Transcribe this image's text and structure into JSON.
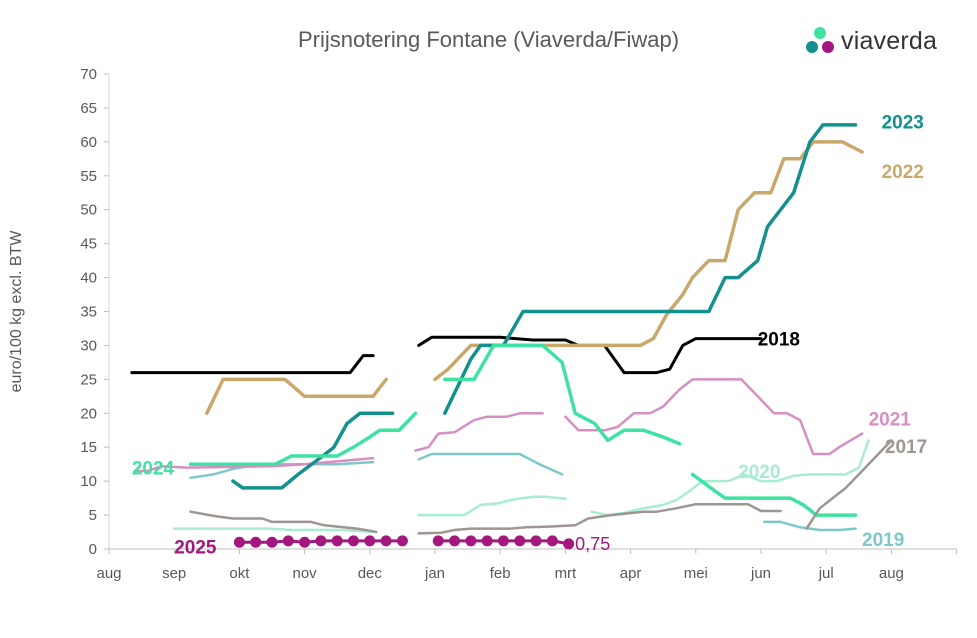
{
  "chart_data": {
    "type": "line",
    "title": "Prijsnotering Fontane (Viaverda/Fiwap)",
    "ylabel": "euro/100 kg excl. BTW",
    "xlabel": "",
    "ylim": [
      0,
      70
    ],
    "y_ticks": [
      0,
      5,
      10,
      15,
      20,
      25,
      30,
      35,
      40,
      45,
      50,
      55,
      60,
      65,
      70
    ],
    "x_ticks": [
      "aug",
      "sep",
      "okt",
      "nov",
      "dec",
      "jan",
      "feb",
      "mrt",
      "apr",
      "mei",
      "jun",
      "jul",
      "aug"
    ],
    "x_unit": "months since start of August (season year)",
    "xlim": [
      0,
      13
    ],
    "grid": false,
    "logo": "viaverda",
    "annotations": [
      {
        "text": "0,75",
        "x": 7.15,
        "y": 0.75
      }
    ],
    "series": [
      {
        "name": "2018",
        "color": "#000000",
        "width": 3,
        "label": {
          "x": 9.95,
          "y": 31
        },
        "segments": [
          [
            [
              0.35,
              26
            ],
            [
              3.7,
              26
            ],
            [
              3.9,
              28.5
            ],
            [
              4.05,
              28.5
            ]
          ],
          [
            [
              4.75,
              30
            ],
            [
              4.95,
              31.2
            ],
            [
              6.0,
              31.2
            ],
            [
              6.5,
              30.8
            ],
            [
              7.0,
              30.8
            ],
            [
              7.2,
              30
            ],
            [
              7.6,
              30
            ],
            [
              7.9,
              26
            ],
            [
              8.4,
              26
            ],
            [
              8.6,
              26.5
            ],
            [
              8.8,
              30
            ],
            [
              9.0,
              31
            ],
            [
              10.0,
              31
            ]
          ]
        ]
      },
      {
        "name": "2019",
        "color": "#7ec8c8",
        "width": 2.5,
        "label": {
          "x": 11.55,
          "y": 1.5
        },
        "segments": [
          [
            [
              1.25,
              10.5
            ],
            [
              1.6,
              11
            ],
            [
              1.9,
              11.8
            ],
            [
              2.3,
              12.5
            ],
            [
              3.5,
              12.5
            ],
            [
              4.05,
              12.8
            ]
          ],
          [
            [
              4.75,
              13.2
            ],
            [
              4.95,
              14
            ],
            [
              6.3,
              14
            ],
            [
              6.6,
              12.5
            ],
            [
              6.95,
              11
            ]
          ],
          [
            [
              10.05,
              4
            ],
            [
              10.3,
              4
            ],
            [
              10.6,
              3.2
            ],
            [
              10.9,
              2.8
            ],
            [
              11.2,
              2.8
            ],
            [
              11.45,
              3
            ]
          ]
        ]
      },
      {
        "name": "2020",
        "color": "#a8ecd2",
        "width": 2.5,
        "label": {
          "x": 9.65,
          "y": 11.5
        },
        "segments": [
          [
            [
              1.0,
              3
            ],
            [
              2.45,
              3
            ],
            [
              2.8,
              2.8
            ],
            [
              3.6,
              2.8
            ],
            [
              4.05,
              2.5
            ]
          ],
          [
            [
              4.75,
              5
            ],
            [
              5.45,
              5
            ],
            [
              5.7,
              6.5
            ],
            [
              5.95,
              6.7
            ],
            [
              6.2,
              7.3
            ],
            [
              6.5,
              7.7
            ],
            [
              6.7,
              7.7
            ],
            [
              7.0,
              7.4
            ]
          ],
          [
            [
              7.4,
              5.5
            ],
            [
              7.65,
              5
            ],
            [
              7.9,
              5.3
            ],
            [
              8.1,
              5.8
            ],
            [
              8.5,
              6.5
            ],
            [
              8.7,
              7.2
            ],
            [
              8.9,
              8.5
            ],
            [
              9.1,
              10
            ],
            [
              9.5,
              10
            ],
            [
              9.75,
              11
            ],
            [
              10.0,
              10
            ],
            [
              10.25,
              10
            ],
            [
              10.5,
              10.8
            ],
            [
              10.75,
              11
            ],
            [
              11.3,
              11
            ],
            [
              11.5,
              12
            ],
            [
              11.65,
              16
            ]
          ]
        ]
      },
      {
        "name": "2021",
        "color": "#d78fc3",
        "width": 2.5,
        "label": {
          "x": 11.65,
          "y": 19.2
        },
        "segments": [
          [
            [
              0.4,
              11.5
            ],
            [
              0.6,
              11.5
            ],
            [
              0.8,
              12.2
            ],
            [
              1.2,
              12
            ],
            [
              2.5,
              12.2
            ],
            [
              3.0,
              12.5
            ],
            [
              3.6,
              13
            ],
            [
              4.05,
              13.4
            ]
          ],
          [
            [
              4.7,
              14.5
            ],
            [
              4.9,
              15
            ],
            [
              5.05,
              17
            ],
            [
              5.3,
              17.2
            ],
            [
              5.6,
              19
            ],
            [
              5.8,
              19.5
            ],
            [
              6.1,
              19.5
            ],
            [
              6.3,
              20
            ],
            [
              6.65,
              20
            ]
          ],
          [
            [
              7.0,
              19.5
            ],
            [
              7.2,
              17.5
            ],
            [
              7.6,
              17.5
            ],
            [
              7.8,
              18
            ],
            [
              8.05,
              20
            ],
            [
              8.3,
              20
            ],
            [
              8.5,
              21
            ],
            [
              8.75,
              23.5
            ],
            [
              8.95,
              25
            ],
            [
              9.7,
              25
            ],
            [
              9.95,
              22.5
            ],
            [
              10.2,
              20
            ],
            [
              10.4,
              20
            ],
            [
              10.6,
              19
            ],
            [
              10.8,
              14
            ],
            [
              11.05,
              14
            ],
            [
              11.2,
              15
            ],
            [
              11.55,
              17
            ]
          ]
        ]
      },
      {
        "name": "2022",
        "color": "#c9a86c",
        "width": 3.5,
        "label": {
          "x": 11.85,
          "y": 55.7
        },
        "segments": [
          [
            [
              1.5,
              20
            ],
            [
              1.75,
              25
            ],
            [
              2.4,
              25
            ],
            [
              2.7,
              25
            ],
            [
              3.0,
              22.5
            ],
            [
              4.05,
              22.5
            ],
            [
              4.25,
              25
            ]
          ],
          [
            [
              5.0,
              25
            ],
            [
              5.2,
              26.5
            ],
            [
              5.45,
              29
            ],
            [
              5.55,
              30
            ],
            [
              7.45,
              30
            ],
            [
              8.15,
              30
            ],
            [
              8.35,
              31
            ],
            [
              8.55,
              34.5
            ],
            [
              8.8,
              37.5
            ],
            [
              8.95,
              40
            ],
            [
              9.2,
              42.5
            ],
            [
              9.45,
              42.5
            ],
            [
              9.65,
              50
            ],
            [
              9.9,
              52.5
            ],
            [
              10.15,
              52.5
            ],
            [
              10.35,
              57.5
            ],
            [
              10.6,
              57.5
            ],
            [
              10.8,
              60
            ],
            [
              11.25,
              60
            ],
            [
              11.55,
              58.5
            ]
          ]
        ]
      },
      {
        "name": "2023",
        "color": "#13918e",
        "width": 3.5,
        "label": {
          "x": 11.85,
          "y": 63
        },
        "segments": [
          [
            [
              1.9,
              10
            ],
            [
              2.05,
              9
            ],
            [
              2.65,
              9
            ],
            [
              2.9,
              11
            ],
            [
              3.25,
              13.5
            ],
            [
              3.45,
              15
            ],
            [
              3.65,
              18.5
            ],
            [
              3.85,
              20
            ],
            [
              4.35,
              20
            ]
          ],
          [
            [
              5.15,
              20
            ],
            [
              5.3,
              23
            ],
            [
              5.55,
              28
            ],
            [
              5.7,
              30
            ],
            [
              6.05,
              30
            ],
            [
              6.35,
              35
            ],
            [
              8.8,
              35
            ],
            [
              9.2,
              35
            ],
            [
              9.45,
              40
            ],
            [
              9.65,
              40
            ],
            [
              9.95,
              42.5
            ],
            [
              10.1,
              47.5
            ],
            [
              10.3,
              50
            ],
            [
              10.5,
              52.5
            ],
            [
              10.75,
              60
            ],
            [
              10.95,
              62.5
            ],
            [
              11.45,
              62.5
            ]
          ]
        ]
      },
      {
        "name": "2024",
        "color": "#3fe2a0",
        "width": 3.5,
        "label": {
          "x": 0.35,
          "y": 12
        },
        "segments": [
          [
            [
              1.25,
              12.5
            ],
            [
              2.55,
              12.5
            ],
            [
              2.8,
              13.7
            ],
            [
              3.5,
              13.7
            ],
            [
              3.75,
              15
            ],
            [
              4.0,
              16.5
            ],
            [
              4.15,
              17.5
            ],
            [
              4.45,
              17.5
            ],
            [
              4.7,
              20
            ]
          ],
          [
            [
              5.15,
              25
            ],
            [
              5.6,
              25
            ],
            [
              5.9,
              30
            ],
            [
              6.65,
              30
            ],
            [
              6.95,
              27.5
            ],
            [
              7.15,
              20
            ],
            [
              7.45,
              18.5
            ],
            [
              7.65,
              16
            ],
            [
              7.9,
              17.5
            ],
            [
              8.2,
              17.5
            ],
            [
              8.5,
              16.5
            ],
            [
              8.75,
              15.5
            ]
          ],
          [
            [
              8.95,
              11
            ],
            [
              9.3,
              8.5
            ],
            [
              9.45,
              7.5
            ],
            [
              10.45,
              7.5
            ],
            [
              10.65,
              6.5
            ],
            [
              10.85,
              5
            ],
            [
              11.45,
              5
            ]
          ]
        ]
      },
      {
        "name": "2017",
        "color": "#9e9691",
        "width": 2.5,
        "label": {
          "x": 11.9,
          "y": 15.2
        },
        "segments": [
          [
            [
              1.25,
              5.5
            ],
            [
              1.65,
              4.8
            ],
            [
              1.9,
              4.5
            ],
            [
              2.35,
              4.5
            ],
            [
              2.5,
              4
            ],
            [
              3.1,
              4
            ],
            [
              3.3,
              3.5
            ],
            [
              3.8,
              3
            ],
            [
              4.0,
              2.7
            ],
            [
              4.1,
              2.5
            ]
          ],
          [
            [
              4.75,
              2.3
            ],
            [
              5.1,
              2.4
            ],
            [
              5.3,
              2.8
            ],
            [
              5.55,
              3
            ],
            [
              6.15,
              3
            ],
            [
              6.4,
              3.2
            ],
            [
              6.75,
              3.3
            ],
            [
              7.15,
              3.5
            ],
            [
              7.35,
              4.5
            ],
            [
              7.7,
              5
            ],
            [
              8.2,
              5.5
            ],
            [
              8.4,
              5.5
            ],
            [
              8.7,
              6
            ],
            [
              9.0,
              6.6
            ],
            [
              9.8,
              6.6
            ],
            [
              10.0,
              5.6
            ],
            [
              10.3,
              5.6
            ]
          ],
          [
            [
              10.7,
              3
            ],
            [
              10.9,
              6
            ],
            [
              11.3,
              9
            ],
            [
              11.6,
              12
            ],
            [
              11.8,
              14
            ],
            [
              12.0,
              16
            ]
          ]
        ]
      },
      {
        "name": "2025",
        "color": "#a3177f",
        "width": 3,
        "markers": true,
        "label": {
          "x": 1.0,
          "y": 0.4
        },
        "segments": [
          [
            [
              2.0,
              1
            ],
            [
              2.25,
              1
            ],
            [
              2.5,
              1
            ],
            [
              2.75,
              1.2
            ],
            [
              3.0,
              1
            ],
            [
              3.25,
              1.2
            ],
            [
              3.5,
              1.2
            ],
            [
              3.75,
              1.2
            ],
            [
              4.0,
              1.2
            ],
            [
              4.25,
              1.2
            ],
            [
              4.5,
              1.2
            ]
          ],
          [
            [
              5.05,
              1.2
            ],
            [
              5.3,
              1.2
            ],
            [
              5.55,
              1.2
            ],
            [
              5.8,
              1.2
            ],
            [
              6.05,
              1.2
            ],
            [
              6.3,
              1.2
            ],
            [
              6.55,
              1.2
            ],
            [
              6.8,
              1.2
            ],
            [
              7.05,
              0.75
            ]
          ]
        ]
      }
    ]
  }
}
